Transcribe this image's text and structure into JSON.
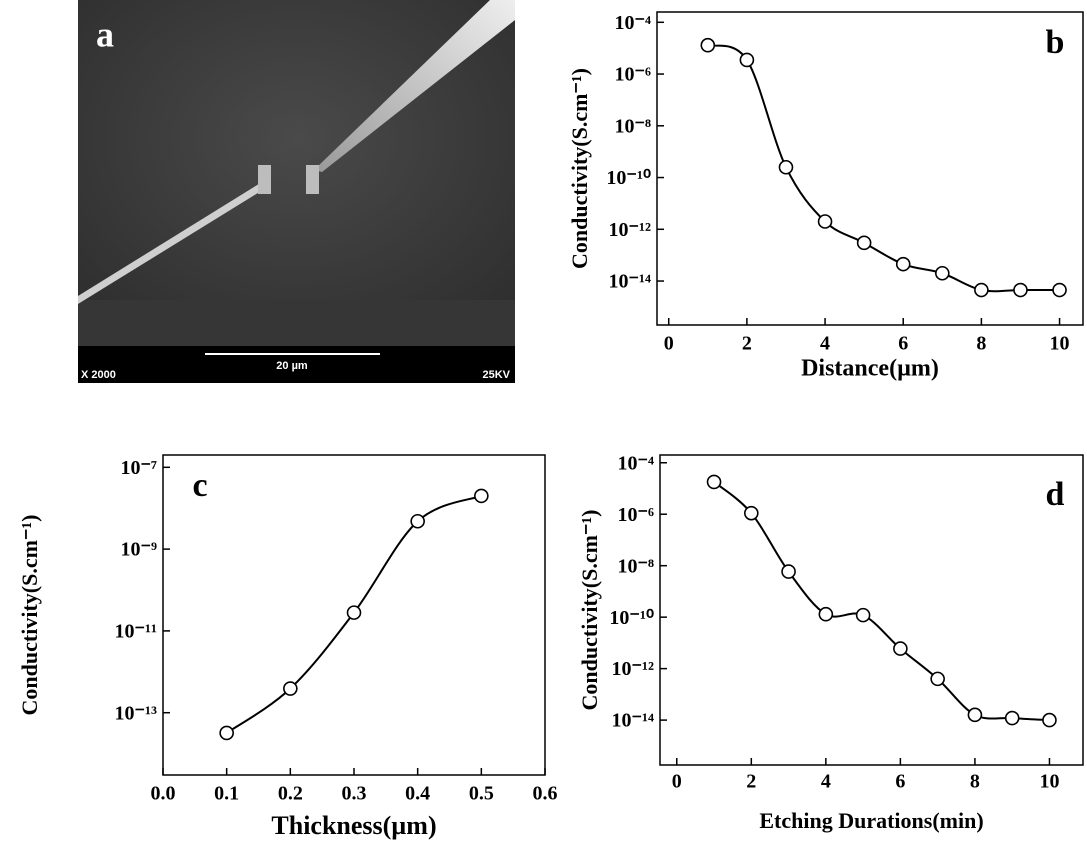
{
  "panel_a": {
    "label": "a",
    "magnification": "X 2000",
    "scale_bar": "20 µm",
    "voltage": "25KV"
  },
  "chart_data": [
    {
      "type": "line",
      "panel_label": "b",
      "x_label": "Distance(µm)",
      "y_label": "Conductivity(S.cm⁻¹)",
      "x": [
        1,
        2,
        3,
        4,
        5,
        6,
        7,
        8,
        9,
        10
      ],
      "values": [
        1.3e-05,
        3.5e-06,
        2.5e-10,
        2e-12,
        3e-13,
        4.5e-14,
        2e-14,
        4.5e-15,
        4.5e-15,
        4.5e-15
      ],
      "color": "#000000",
      "marker": "circle",
      "smooth": true,
      "ylog": true,
      "xlim": [
        -0.3,
        10.6
      ],
      "xticks": [
        0,
        2,
        4,
        6,
        8,
        10
      ],
      "ylim": [
        2e-16,
        0.00025
      ],
      "yticks": [
        {
          "value": 0.0001,
          "label": "10⁻⁴"
        },
        {
          "value": 1e-06,
          "label": "10⁻⁶"
        },
        {
          "value": 1e-08,
          "label": "10⁻⁸"
        },
        {
          "value": 1e-10,
          "label": "10⁻¹⁰"
        },
        {
          "value": 1e-12,
          "label": "10⁻¹²"
        },
        {
          "value": 1e-14,
          "label": "10⁻¹⁴"
        }
      ]
    },
    {
      "type": "line",
      "panel_label": "c",
      "x_label": "Thickness(µm)",
      "y_label": "Conductivity(S.cm⁻¹)",
      "x": [
        0.1,
        0.2,
        0.3,
        0.4,
        0.5
      ],
      "values": [
        3.2e-14,
        3.9e-13,
        2.8e-11,
        4.8e-09,
        2e-08
      ],
      "color": "#000000",
      "marker": "circle",
      "smooth": true,
      "ylog": true,
      "xlim": [
        0,
        0.6
      ],
      "xticks": [
        {
          "value": 0,
          "label": "0.0"
        },
        0.1,
        0.2,
        0.3,
        0.4,
        0.5,
        0.6
      ],
      "ylim": [
        3e-15,
        2e-07
      ],
      "yticks": [
        {
          "value": 1e-07,
          "label": "10⁻⁷"
        },
        {
          "value": 1e-09,
          "label": "10⁻⁹"
        },
        {
          "value": 1e-11,
          "label": "10⁻¹¹"
        },
        {
          "value": 1e-13,
          "label": "10⁻¹³"
        }
      ]
    },
    {
      "type": "line",
      "panel_label": "d",
      "x_label": "Etching Durations(min)",
      "y_label": "Conductivity(S.cm⁻¹)",
      "x": [
        1,
        2,
        3,
        4,
        5,
        6,
        7,
        8,
        9,
        10
      ],
      "values": [
        1.8e-05,
        1.1e-06,
        5.9e-09,
        1.3e-10,
        1.2e-10,
        6e-12,
        4e-13,
        1.6e-14,
        1.2e-14,
        1e-14
      ],
      "color": "#000000",
      "marker": "circle",
      "smooth": true,
      "ylog": true,
      "xlim": [
        -0.45,
        10.9
      ],
      "xticks": [
        0,
        2,
        4,
        6,
        8,
        10
      ],
      "ylim": [
        1.8e-16,
        0.0002
      ],
      "yticks": [
        {
          "value": 0.0001,
          "label": "10⁻⁴"
        },
        {
          "value": 1e-06,
          "label": "10⁻⁶"
        },
        {
          "value": 1e-08,
          "label": "10⁻⁸"
        },
        {
          "value": 1e-10,
          "label": "10⁻¹⁰"
        },
        {
          "value": 1e-12,
          "label": "10⁻¹²"
        },
        {
          "value": 1e-14,
          "label": "10⁻¹⁴"
        }
      ]
    }
  ]
}
